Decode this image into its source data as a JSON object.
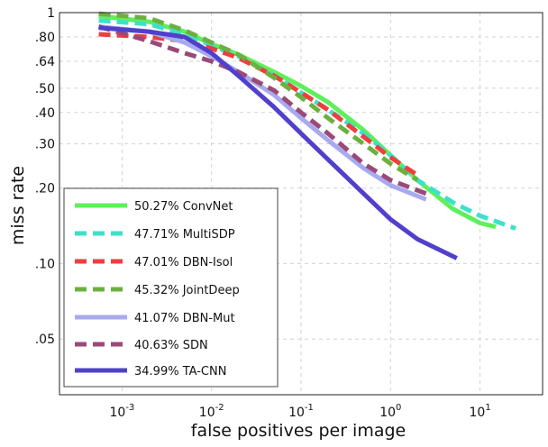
{
  "chart_data": {
    "type": "line",
    "xlabel": "false positives per image",
    "ylabel": "miss rate",
    "x_scale": "log",
    "y_scale": "log",
    "xlim": [
      0.0002,
      50
    ],
    "ylim": [
      0.03,
      1
    ],
    "grid": true,
    "legend_position": "bottom-left",
    "x_ticks": [
      {
        "value": 0.001,
        "base": "10",
        "exp": "-3"
      },
      {
        "value": 0.01,
        "base": "10",
        "exp": "-2"
      },
      {
        "value": 0.1,
        "base": "10",
        "exp": "-1"
      },
      {
        "value": 1,
        "base": "10",
        "exp": "0"
      },
      {
        "value": 10,
        "base": "10",
        "exp": "1"
      }
    ],
    "y_ticks": [
      {
        "value": 1,
        "label": "1"
      },
      {
        "value": 0.8,
        "label": ".80"
      },
      {
        "value": 0.64,
        "label": ".64"
      },
      {
        "value": 0.5,
        "label": ".50"
      },
      {
        "value": 0.4,
        "label": ".40"
      },
      {
        "value": 0.3,
        "label": ".30"
      },
      {
        "value": 0.2,
        "label": ".20"
      },
      {
        "value": 0.1,
        "label": ".10"
      },
      {
        "value": 0.05,
        "label": ".05"
      }
    ],
    "series": [
      {
        "name": "50.27% ConvNet",
        "color": "#5ef05a",
        "dash": false,
        "x": [
          0.00055,
          0.002,
          0.005,
          0.01,
          0.02,
          0.05,
          0.1,
          0.2,
          0.5,
          1,
          2,
          5,
          10,
          15
        ],
        "y": [
          0.97,
          0.92,
          0.84,
          0.75,
          0.68,
          0.58,
          0.51,
          0.44,
          0.34,
          0.27,
          0.215,
          0.165,
          0.145,
          0.14
        ]
      },
      {
        "name": "47.71% MultiSDP",
        "color": "#3ee0c8",
        "dash": true,
        "x": [
          0.00055,
          0.002,
          0.005,
          0.01,
          0.02,
          0.05,
          0.1,
          0.2,
          0.5,
          1,
          2,
          5,
          10,
          25
        ],
        "y": [
          0.93,
          0.9,
          0.82,
          0.74,
          0.67,
          0.56,
          0.48,
          0.41,
          0.33,
          0.27,
          0.215,
          0.175,
          0.155,
          0.138
        ]
      },
      {
        "name": "47.01% DBN-Isol",
        "color": "#ee3e3e",
        "dash": true,
        "x": [
          0.00055,
          0.002,
          0.005,
          0.01,
          0.02,
          0.05,
          0.1,
          0.2,
          0.5,
          1,
          2
        ],
        "y": [
          0.82,
          0.8,
          0.77,
          0.72,
          0.66,
          0.56,
          0.48,
          0.41,
          0.32,
          0.265,
          0.225
        ]
      },
      {
        "name": "45.32% JointDeep",
        "color": "#6cb040",
        "dash": true,
        "x": [
          0.00055,
          0.002,
          0.005,
          0.01,
          0.02,
          0.05,
          0.1,
          0.2,
          0.5,
          1,
          2
        ],
        "y": [
          0.99,
          0.95,
          0.85,
          0.76,
          0.68,
          0.55,
          0.46,
          0.38,
          0.3,
          0.25,
          0.215
        ]
      },
      {
        "name": "41.07% DBN-Mut",
        "color": "#a8aaf0",
        "dash": false,
        "x": [
          0.00055,
          0.002,
          0.005,
          0.01,
          0.02,
          0.05,
          0.1,
          0.2,
          0.5,
          1,
          2.5
        ],
        "y": [
          0.88,
          0.84,
          0.76,
          0.67,
          0.58,
          0.47,
          0.38,
          0.31,
          0.24,
          0.205,
          0.18
        ]
      },
      {
        "name": "40.63% SDN",
        "color": "#9a4a78",
        "dash": true,
        "x": [
          0.00055,
          0.002,
          0.005,
          0.01,
          0.02,
          0.05,
          0.1,
          0.2,
          0.5,
          1,
          2.5
        ],
        "y": [
          0.88,
          0.77,
          0.69,
          0.64,
          0.58,
          0.49,
          0.4,
          0.33,
          0.25,
          0.215,
          0.19
        ]
      },
      {
        "name": "34.99% TA-CNN",
        "color": "#5040cc",
        "dash": false,
        "x": [
          0.00055,
          0.002,
          0.005,
          0.01,
          0.02,
          0.05,
          0.1,
          0.2,
          0.5,
          1,
          2,
          5.5
        ],
        "y": [
          0.87,
          0.84,
          0.8,
          0.69,
          0.56,
          0.42,
          0.33,
          0.26,
          0.19,
          0.15,
          0.125,
          0.105
        ]
      }
    ]
  }
}
